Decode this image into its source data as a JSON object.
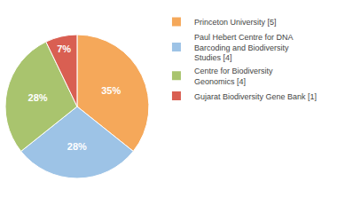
{
  "chart_data": {
    "type": "pie",
    "categories": [
      "Princeton University [5]",
      "Paul Hebert Centre for DNA\nBarcoding and Biodiversity\nStudies [4]",
      "Centre for Biodiversity\nGeonomics [4]",
      "Gujarat Biodiversity Gene Bank [1]"
    ],
    "values": [
      35,
      28,
      28,
      7
    ],
    "value_labels": [
      "35%",
      "28%",
      "28%",
      "7%"
    ],
    "data_labels": true,
    "colors": [
      "#f5a85a",
      "#9dc3e6",
      "#a9c46e",
      "#d95f52"
    ],
    "legend": "right"
  }
}
